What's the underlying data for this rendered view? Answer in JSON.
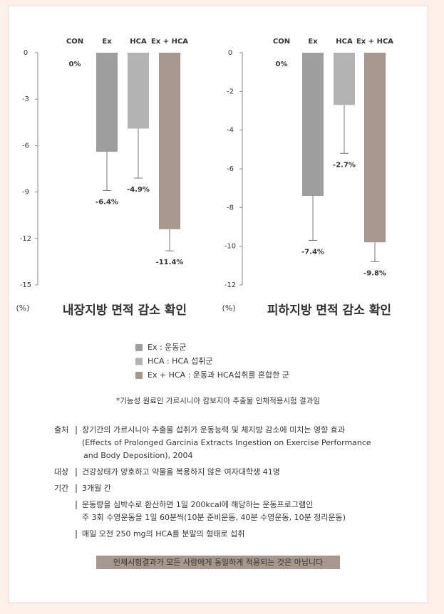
{
  "chart_data": [
    {
      "type": "bar",
      "title": "내장지방 면적 감소 확인",
      "y_unit": "(%)",
      "categories": [
        "CON",
        "Ex",
        "HCA",
        "Ex + HCA"
      ],
      "values": [
        0,
        -6.4,
        -4.9,
        -11.4
      ],
      "value_labels": [
        "0%",
        "-6.4%",
        "-4.9%",
        "-11.4%"
      ],
      "errors": [
        null,
        2.5,
        3.2,
        1.4
      ],
      "colors": [
        "#9e9e9e",
        "#9e9e9e",
        "#b3b3b3",
        "#a8978c"
      ],
      "ylim": [
        -15,
        0
      ],
      "yticks": [
        0,
        -3,
        -6,
        -9,
        -12,
        -15
      ]
    },
    {
      "type": "bar",
      "title": "피하지방 면적 감소 확인",
      "y_unit": "(%)",
      "categories": [
        "CON",
        "Ex",
        "HCA",
        "Ex + HCA"
      ],
      "values": [
        0,
        -7.4,
        -2.7,
        -9.8
      ],
      "value_labels": [
        "0%",
        "-7.4%",
        "-2.7%",
        "-9.8%"
      ],
      "errors": [
        null,
        2.3,
        2.5,
        1.0
      ],
      "colors": [
        "#9e9e9e",
        "#9e9e9e",
        "#b3b3b3",
        "#a8978c"
      ],
      "ylim": [
        -12,
        0
      ],
      "yticks": [
        0,
        -2,
        -4,
        -6,
        -8,
        -10,
        -12
      ]
    }
  ],
  "legend": [
    {
      "label": "Ex : 운동군",
      "color": "#9e9e9e"
    },
    {
      "label": "HCA : HCA 섭취군",
      "color": "#b3b3b3"
    },
    {
      "label": "Ex + HCA : 운동과 HCA섭취를 혼합한 군",
      "color": "#a8978c"
    }
  ],
  "note": "*기능성 원료인 가르시니아 캄보지아 추출물 인체적용시험 결과임",
  "info": [
    {
      "label": "출처",
      "lines": [
        "장기간의 가르시니아 추출물 섭취가 운동능력 및 체지방 감소에 미치는 영향 효과",
        "(Effects of Prolonged Garcinia Extracts Ingestion on Exercise Performance",
        "and Body Deposition), 2004"
      ]
    },
    {
      "label": "대상",
      "lines": [
        "건강상태가 양호하고 약물을 복용하지 않은 여자대학생 41명"
      ]
    },
    {
      "label": "기간",
      "lines": [
        "3개월 간"
      ]
    },
    {
      "lines": [
        "운동량을 심박수로 환산하면 1일 200kcal에 해당하는 운동프로그램인",
        "주 3회 수영운동을 1일 60분씩(10분 준비운동, 40분 수영운동, 10분 정리운동)"
      ]
    },
    {
      "lines": [
        "매일 오전 250 mg의 HCA를 분말의 형태로 섭취"
      ]
    }
  ],
  "disclaimer": "인체시험결과가 모든 사람에게 동일하게 적용되는 것은 아닙니다"
}
